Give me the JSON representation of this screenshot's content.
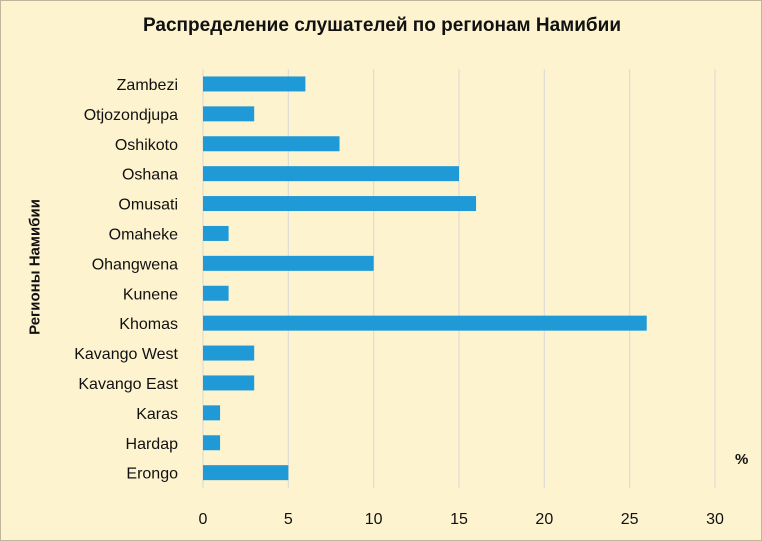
{
  "chart_data": {
    "type": "bar",
    "orientation": "horizontal",
    "title": "Распределение слушателей по регионам Намибии",
    "xlabel": "%",
    "ylabel": "Регионы Намибии",
    "categories": [
      "Zambezi",
      "Otjozondjupa",
      "Oshikoto",
      "Oshana",
      "Omusati",
      "Omaheke",
      "Ohangwena",
      "Kunene",
      "Khomas",
      "Kavango West",
      "Kavango East",
      "Karas",
      "Hardap",
      "Erongo"
    ],
    "values": [
      6,
      3,
      8,
      15,
      16,
      1.5,
      10,
      1.5,
      26,
      3,
      3,
      1,
      1,
      5
    ],
    "xlim": [
      0,
      30
    ],
    "xticks": [
      0,
      5,
      10,
      15,
      20,
      25,
      30
    ],
    "grid": "vertical",
    "bar_color": "#1f9ad6",
    "grid_color": "#d9d9d9",
    "background": "#fdf3cf"
  }
}
